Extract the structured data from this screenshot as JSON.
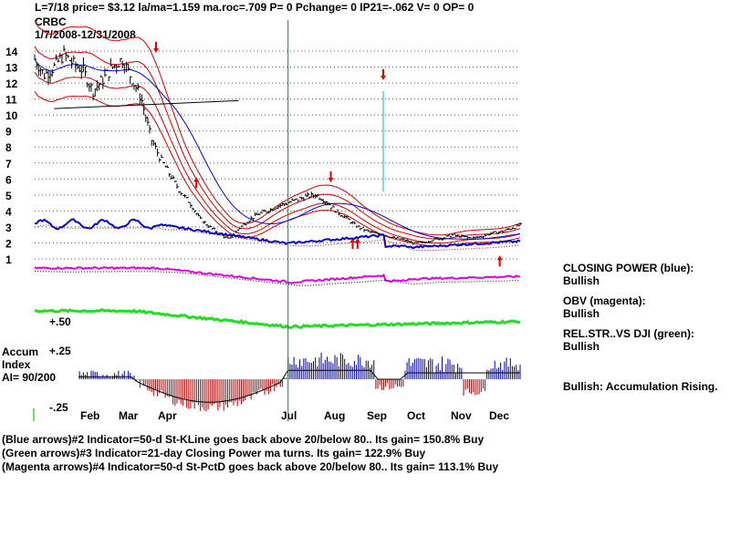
{
  "header": {
    "stats": "L=7/18  price= $3.12  la/ma=1.159  ma.roc=.709 P=   0 Pchange=   0 IP21=-.062 V= 0 OP= 0",
    "symbol": "CRBC",
    "date_range": "1/7/2008-12/31/2008"
  },
  "colors": {
    "price": "#000000",
    "band_outer": "#cc0000",
    "band_inner": "#cc0000",
    "ma_blue": "#0000cc",
    "closing_power": "#0000cc",
    "obv": "#dd00dd",
    "relstr": "#22dd22",
    "accum_pos": "#000099",
    "accum_neg": "#aa0000",
    "vline": "#009900",
    "cyan": "#00bbbb",
    "arrow_red": "#dd0000",
    "grid": "#555555"
  },
  "side_panel": {
    "cp_label": "CLOSING POWER (blue):",
    "cp_value": "Bullish",
    "obv_label": "OBV (magenta):",
    "obv_value": "Bullish",
    "rs_label": "REL.STR..VS DJI (green):",
    "rs_value": "Bullish",
    "accum_summary": "Bullish: Accumulation Rising."
  },
  "accum": {
    "title_line1": "Accum",
    "title_line2": "Index",
    "ai_value": "AI= 90/200",
    "plus50": "+.50",
    "plus25": "+.25",
    "minus25": "-.25"
  },
  "footer": [
    "(Blue arrows)#2 Indicator=50-d St-KLine goes back above 20/below 80.. Its gain= 150.8% Buy",
    "(Green arrows)#3 Indicator=21-day Closing Power ma turns. Its gain= 122.9% Buy",
    "(Magenta arrows)#4 Indicator=50-d St-PctD goes back above 20/below 80.. Its gain= 113.1% Buy"
  ],
  "chart_data": {
    "type": "line",
    "x_labels": [
      "Feb",
      "Mar",
      "Apr",
      "Jul",
      "Aug",
      "Sep",
      "Oct",
      "Nov",
      "Dec"
    ],
    "y_ticks": [
      14,
      13,
      12,
      11,
      10,
      9,
      8,
      7,
      6,
      5,
      4,
      3,
      2,
      1
    ],
    "y_range": [
      1,
      14
    ],
    "grid": "horizontal dotted",
    "price_series": {
      "t": [
        0,
        0.02,
        0.04,
        0.06,
        0.08,
        0.1,
        0.12,
        0.14,
        0.16,
        0.18,
        0.2,
        0.22,
        0.24,
        0.26,
        0.28,
        0.3,
        0.32,
        0.34,
        0.36,
        0.38,
        0.4,
        0.42,
        0.44,
        0.46,
        0.48,
        0.5,
        0.52,
        0.54,
        0.56,
        0.58,
        0.6,
        0.62,
        0.64,
        0.66,
        0.68,
        0.7,
        0.72,
        0.74,
        0.76,
        0.78,
        0.8,
        0.82,
        0.84,
        0.86,
        0.88,
        0.9,
        0.92,
        0.94,
        0.96,
        0.98,
        1.0
      ],
      "close": [
        13.5,
        12.5,
        13.0,
        13.8,
        13.2,
        12.8,
        11.5,
        12.2,
        13.0,
        13.5,
        12.3,
        11.0,
        8.5,
        7.2,
        6.2,
        5.2,
        4.5,
        3.5,
        3.0,
        2.6,
        2.2,
        2.9,
        3.4,
        3.8,
        4.0,
        4.3,
        4.5,
        4.7,
        4.9,
        5.0,
        4.6,
        4.0,
        3.6,
        3.1,
        2.8,
        2.6,
        2.5,
        2.3,
        2.2,
        2.0,
        2.0,
        2.2,
        2.3,
        2.5,
        2.4,
        2.3,
        2.4,
        2.6,
        2.7,
        2.9,
        3.12
      ]
    },
    "annotation_lines": {
      "resistance_line": {
        "t": [
          0.04,
          0.42
        ],
        "value": [
          10.4,
          10.9
        ]
      },
      "vertical_green_t": 0.522,
      "cyan_spike": {
        "t": 0.718,
        "from": 5.2,
        "to": 11.5
      }
    }
  }
}
